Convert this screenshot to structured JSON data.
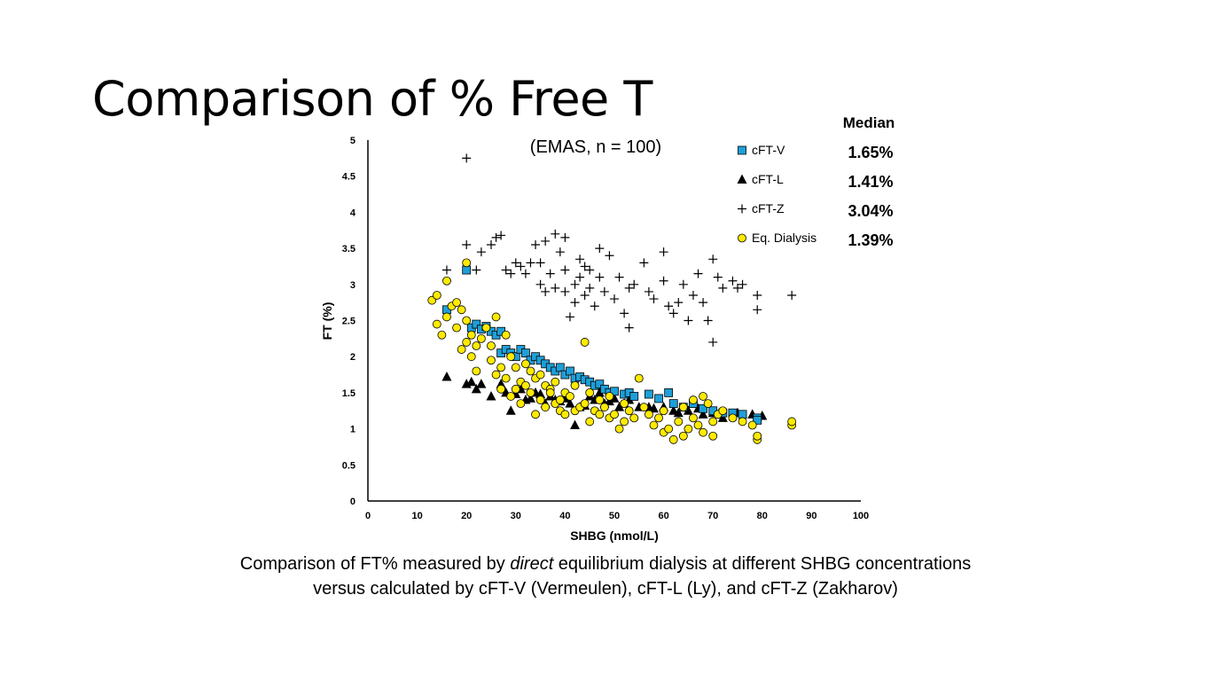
{
  "slide": {
    "title": "Comparison of % Free T",
    "caption_line1_pre": "Comparison of FT% measured by ",
    "caption_line1_em": "direct",
    "caption_line1_post": " equilibrium dialysis at different SHBG concentrations",
    "caption_line2": "versus calculated by cFT-V (Vermeulen), cFT-L (Ly), and cFT-Z (Zakharov)"
  },
  "chart_data": {
    "type": "scatter",
    "subtitle": "(EMAS, n = 100)",
    "xlabel": "SHBG (nmol/L)",
    "ylabel": "FT (%)",
    "xlim": [
      0,
      100
    ],
    "ylim": [
      0,
      5
    ],
    "xticks": [
      0,
      10,
      20,
      30,
      40,
      50,
      60,
      70,
      80,
      90,
      100
    ],
    "yticks": [
      0,
      0.5,
      1,
      1.5,
      2,
      2.5,
      3,
      3.5,
      4,
      4.5,
      5
    ],
    "yticklabels": [
      "0",
      "0.5",
      "1",
      "1.5",
      "2",
      "2.5",
      "3",
      "3.5",
      "4",
      "4.5",
      "5"
    ],
    "grid": false,
    "legend_placement": "top-right",
    "median_header": "Median",
    "series": [
      {
        "name": "cFT-V",
        "median": "1.65%",
        "marker": "square",
        "color": "#1e9fd8",
        "points": [
          [
            20,
            3.2
          ],
          [
            16,
            2.65
          ],
          [
            21,
            2.4
          ],
          [
            22,
            2.45
          ],
          [
            23,
            2.38
          ],
          [
            24,
            2.42
          ],
          [
            25,
            2.35
          ],
          [
            26,
            2.3
          ],
          [
            27,
            2.35
          ],
          [
            27,
            2.05
          ],
          [
            28,
            2.1
          ],
          [
            29,
            2.05
          ],
          [
            30,
            2.0
          ],
          [
            31,
            2.1
          ],
          [
            32,
            2.05
          ],
          [
            33,
            1.95
          ],
          [
            34,
            2.0
          ],
          [
            35,
            1.95
          ],
          [
            36,
            1.9
          ],
          [
            37,
            1.85
          ],
          [
            38,
            1.8
          ],
          [
            39,
            1.85
          ],
          [
            40,
            1.75
          ],
          [
            41,
            1.8
          ],
          [
            42,
            1.7
          ],
          [
            43,
            1.72
          ],
          [
            44,
            1.68
          ],
          [
            45,
            1.65
          ],
          [
            46,
            1.6
          ],
          [
            47,
            1.62
          ],
          [
            48,
            1.55
          ],
          [
            49,
            1.5
          ],
          [
            50,
            1.52
          ],
          [
            52,
            1.48
          ],
          [
            53,
            1.5
          ],
          [
            54,
            1.45
          ],
          [
            57,
            1.48
          ],
          [
            59,
            1.42
          ],
          [
            61,
            1.5
          ],
          [
            62,
            1.35
          ],
          [
            64,
            1.3
          ],
          [
            66,
            1.35
          ],
          [
            68,
            1.28
          ],
          [
            70,
            1.25
          ],
          [
            72,
            1.22
          ],
          [
            74,
            1.22
          ],
          [
            76,
            1.2
          ],
          [
            79,
            1.15
          ],
          [
            79,
            1.12
          ]
        ]
      },
      {
        "name": "cFT-L",
        "median": "1.41%",
        "marker": "triangle",
        "color": "#000000",
        "points": [
          [
            16,
            1.72
          ],
          [
            20,
            1.62
          ],
          [
            21,
            1.65
          ],
          [
            22,
            1.55
          ],
          [
            23,
            1.62
          ],
          [
            25,
            1.45
          ],
          [
            27,
            1.62
          ],
          [
            28,
            1.5
          ],
          [
            29,
            1.25
          ],
          [
            30,
            1.48
          ],
          [
            31,
            1.55
          ],
          [
            32,
            1.4
          ],
          [
            33,
            1.42
          ],
          [
            34,
            1.5
          ],
          [
            35,
            1.48
          ],
          [
            36,
            1.35
          ],
          [
            37,
            1.45
          ],
          [
            38,
            1.4
          ],
          [
            39,
            1.38
          ],
          [
            40,
            1.42
          ],
          [
            41,
            1.35
          ],
          [
            42,
            1.05
          ],
          [
            43,
            1.3
          ],
          [
            44,
            1.32
          ],
          [
            45,
            1.45
          ],
          [
            46,
            1.4
          ],
          [
            47,
            1.5
          ],
          [
            48,
            1.35
          ],
          [
            49,
            1.38
          ],
          [
            50,
            1.42
          ],
          [
            51,
            1.3
          ],
          [
            52,
            1.35
          ],
          [
            53,
            1.4
          ],
          [
            55,
            1.3
          ],
          [
            57,
            1.3
          ],
          [
            58,
            1.28
          ],
          [
            60,
            1.3
          ],
          [
            62,
            1.25
          ],
          [
            63,
            1.22
          ],
          [
            65,
            1.25
          ],
          [
            67,
            1.28
          ],
          [
            68,
            1.2
          ],
          [
            70,
            1.22
          ],
          [
            72,
            1.15
          ],
          [
            75,
            1.22
          ],
          [
            78,
            1.2
          ],
          [
            80,
            1.18
          ]
        ]
      },
      {
        "name": "cFT-Z",
        "median": "3.04%",
        "marker": "plus",
        "color": "#000000",
        "points": [
          [
            20,
            4.75
          ],
          [
            20,
            3.55
          ],
          [
            16,
            3.2
          ],
          [
            22,
            3.2
          ],
          [
            23,
            3.45
          ],
          [
            25,
            3.55
          ],
          [
            26,
            3.65
          ],
          [
            27,
            3.68
          ],
          [
            28,
            3.2
          ],
          [
            29,
            3.15
          ],
          [
            30,
            3.3
          ],
          [
            31,
            3.25
          ],
          [
            32,
            3.15
          ],
          [
            33,
            3.3
          ],
          [
            34,
            3.55
          ],
          [
            35,
            3.3
          ],
          [
            35,
            3.0
          ],
          [
            36,
            3.6
          ],
          [
            36,
            2.9
          ],
          [
            37,
            3.15
          ],
          [
            38,
            3.7
          ],
          [
            38,
            2.95
          ],
          [
            39,
            3.45
          ],
          [
            40,
            3.65
          ],
          [
            40,
            3.2
          ],
          [
            40,
            2.9
          ],
          [
            41,
            2.55
          ],
          [
            42,
            3.0
          ],
          [
            42,
            2.75
          ],
          [
            43,
            3.35
          ],
          [
            43,
            3.1
          ],
          [
            44,
            3.25
          ],
          [
            44,
            2.85
          ],
          [
            45,
            3.2
          ],
          [
            45,
            2.95
          ],
          [
            46,
            2.7
          ],
          [
            47,
            3.5
          ],
          [
            47,
            3.1
          ],
          [
            48,
            2.9
          ],
          [
            49,
            3.4
          ],
          [
            50,
            2.8
          ],
          [
            51,
            3.1
          ],
          [
            52,
            2.6
          ],
          [
            53,
            2.95
          ],
          [
            53,
            2.4
          ],
          [
            54,
            3.0
          ],
          [
            56,
            3.3
          ],
          [
            57,
            2.9
          ],
          [
            58,
            2.8
          ],
          [
            60,
            3.45
          ],
          [
            60,
            3.05
          ],
          [
            61,
            2.7
          ],
          [
            62,
            2.6
          ],
          [
            63,
            2.75
          ],
          [
            64,
            3.0
          ],
          [
            65,
            2.5
          ],
          [
            66,
            2.85
          ],
          [
            67,
            3.15
          ],
          [
            68,
            2.75
          ],
          [
            69,
            2.5
          ],
          [
            70,
            3.35
          ],
          [
            70,
            2.2
          ],
          [
            71,
            3.1
          ],
          [
            72,
            2.95
          ],
          [
            74,
            3.05
          ],
          [
            75,
            2.95
          ],
          [
            76,
            3.0
          ],
          [
            79,
            2.85
          ],
          [
            79,
            2.65
          ],
          [
            86,
            2.85
          ]
        ]
      },
      {
        "name": "Eq. Dialysis",
        "median": "1.39%",
        "marker": "circle",
        "color": "#ffea00",
        "points": [
          [
            13,
            2.78
          ],
          [
            14,
            2.45
          ],
          [
            14,
            2.85
          ],
          [
            15,
            2.3
          ],
          [
            16,
            2.55
          ],
          [
            16,
            3.05
          ],
          [
            17,
            2.7
          ],
          [
            18,
            2.4
          ],
          [
            18,
            2.75
          ],
          [
            19,
            2.65
          ],
          [
            19,
            2.1
          ],
          [
            20,
            3.3
          ],
          [
            20,
            2.5
          ],
          [
            20,
            2.2
          ],
          [
            21,
            2.0
          ],
          [
            21,
            2.3
          ],
          [
            22,
            2.15
          ],
          [
            22,
            1.8
          ],
          [
            23,
            2.25
          ],
          [
            24,
            2.4
          ],
          [
            25,
            2.15
          ],
          [
            25,
            1.95
          ],
          [
            26,
            2.55
          ],
          [
            26,
            1.75
          ],
          [
            27,
            1.85
          ],
          [
            27,
            1.55
          ],
          [
            28,
            2.3
          ],
          [
            28,
            1.7
          ],
          [
            29,
            2.0
          ],
          [
            29,
            1.45
          ],
          [
            30,
            1.85
          ],
          [
            30,
            1.55
          ],
          [
            31,
            1.65
          ],
          [
            31,
            1.35
          ],
          [
            32,
            1.9
          ],
          [
            32,
            1.6
          ],
          [
            33,
            1.8
          ],
          [
            33,
            1.5
          ],
          [
            34,
            1.7
          ],
          [
            34,
            1.2
          ],
          [
            35,
            1.75
          ],
          [
            35,
            1.4
          ],
          [
            36,
            1.6
          ],
          [
            36,
            1.3
          ],
          [
            37,
            1.55
          ],
          [
            37,
            1.5
          ],
          [
            38,
            1.65
          ],
          [
            38,
            1.35
          ],
          [
            39,
            1.4
          ],
          [
            39,
            1.25
          ],
          [
            40,
            1.5
          ],
          [
            40,
            1.2
          ],
          [
            41,
            1.45
          ],
          [
            42,
            1.6
          ],
          [
            42,
            1.25
          ],
          [
            43,
            1.3
          ],
          [
            44,
            2.2
          ],
          [
            44,
            1.35
          ],
          [
            45,
            1.5
          ],
          [
            45,
            1.1
          ],
          [
            46,
            1.25
          ],
          [
            47,
            1.4
          ],
          [
            47,
            1.2
          ],
          [
            48,
            1.3
          ],
          [
            49,
            1.45
          ],
          [
            49,
            1.15
          ],
          [
            50,
            1.2
          ],
          [
            51,
            1.0
          ],
          [
            52,
            1.35
          ],
          [
            52,
            1.1
          ],
          [
            53,
            1.25
          ],
          [
            54,
            1.15
          ],
          [
            55,
            1.7
          ],
          [
            56,
            1.3
          ],
          [
            57,
            1.2
          ],
          [
            58,
            1.05
          ],
          [
            59,
            1.15
          ],
          [
            60,
            1.25
          ],
          [
            60,
            0.95
          ],
          [
            61,
            1.0
          ],
          [
            62,
            0.85
          ],
          [
            63,
            1.1
          ],
          [
            64,
            0.9
          ],
          [
            64,
            1.3
          ],
          [
            65,
            1.0
          ],
          [
            66,
            1.4
          ],
          [
            66,
            1.15
          ],
          [
            67,
            1.05
          ],
          [
            68,
            1.45
          ],
          [
            68,
            0.95
          ],
          [
            69,
            1.35
          ],
          [
            70,
            1.1
          ],
          [
            70,
            0.9
          ],
          [
            71,
            1.2
          ],
          [
            72,
            1.25
          ],
          [
            74,
            1.15
          ],
          [
            76,
            1.1
          ],
          [
            78,
            1.05
          ],
          [
            79,
            0.85
          ],
          [
            79,
            0.9
          ],
          [
            86,
            1.05
          ],
          [
            86,
            1.1
          ]
        ]
      }
    ]
  }
}
